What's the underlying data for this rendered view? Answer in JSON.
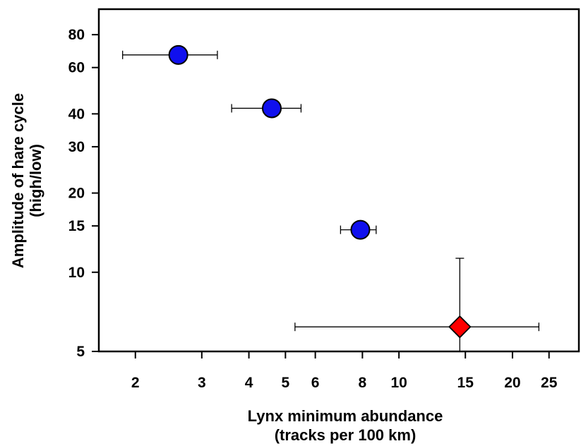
{
  "chart_data": {
    "type": "scatter",
    "title": "",
    "xlabel": [
      "Lynx minimum abundance",
      "(tracks per 100 km)"
    ],
    "ylabel": [
      "Amplitude of hare cycle",
      "(high/low)"
    ],
    "xscale": "log",
    "yscale": "log",
    "xlim": [
      1.6,
      30
    ],
    "ylim": [
      5,
      100
    ],
    "x_ticks": [
      2,
      3,
      4,
      5,
      6,
      8,
      10,
      15,
      20,
      25
    ],
    "y_ticks": [
      5,
      10,
      15,
      20,
      30,
      40,
      60,
      80
    ],
    "grid": false,
    "legend": "none",
    "series": [
      {
        "marker": "circle",
        "color": "#1010ee",
        "points": [
          {
            "x": 2.6,
            "y": 67,
            "xerr": [
              1.85,
              3.3
            ]
          },
          {
            "x": 4.6,
            "y": 42,
            "xerr": [
              3.6,
              5.5
            ]
          },
          {
            "x": 7.9,
            "y": 14.5,
            "xerr": [
              7.0,
              8.7
            ]
          }
        ]
      },
      {
        "marker": "diamond",
        "color": "#ff0000",
        "points": [
          {
            "x": 14.5,
            "y": 6.2,
            "xerr": [
              5.3,
              23.5
            ],
            "yerr": [
              5,
              11.3
            ]
          }
        ]
      }
    ]
  }
}
